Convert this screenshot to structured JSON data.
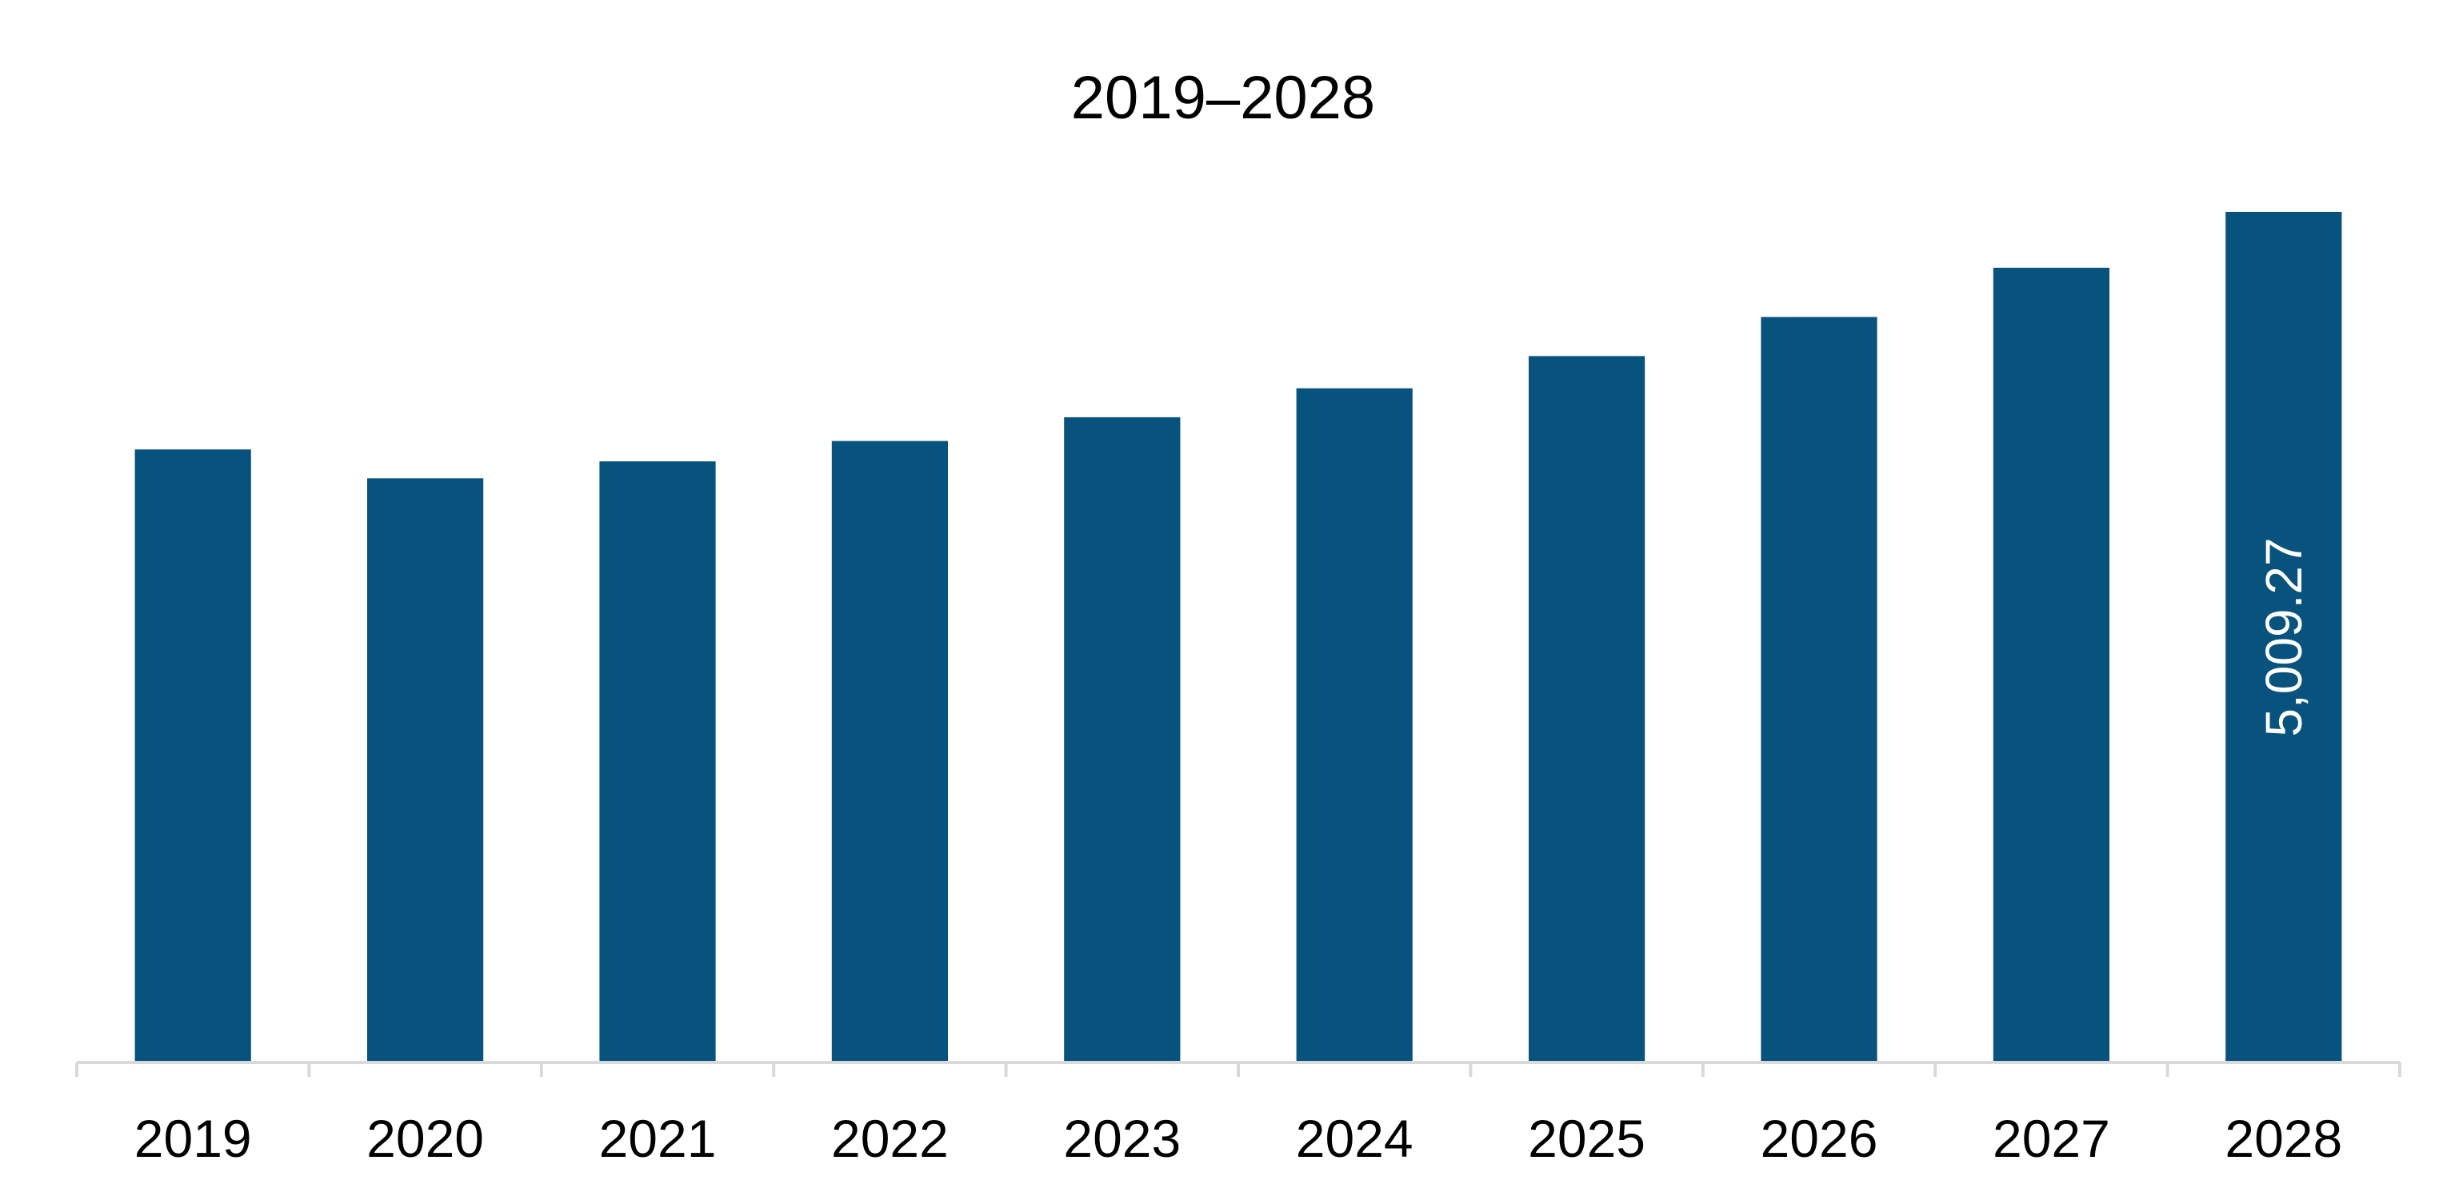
{
  "chart_data": {
    "type": "bar",
    "title": "2019–2028",
    "xlabel": "",
    "ylabel": "",
    "categories": [
      "2019",
      "2020",
      "2021",
      "2022",
      "2023",
      "2024",
      "2025",
      "2026",
      "2027",
      "2028"
    ],
    "series": [
      {
        "values": [
          3610,
          3440,
          3540,
          3660,
          3800,
          3970,
          4160,
          4390,
          4680,
          5009.27
        ],
        "data_labels": [
          "",
          "",
          "",
          "",
          "",
          "",
          "",
          "",
          "",
          "5,009.27"
        ]
      }
    ],
    "ylim": [
      0,
      5009.27
    ],
    "grid": false,
    "legend": "none",
    "bar_color": "#08527E",
    "axis_color": "#D9D9D9"
  }
}
